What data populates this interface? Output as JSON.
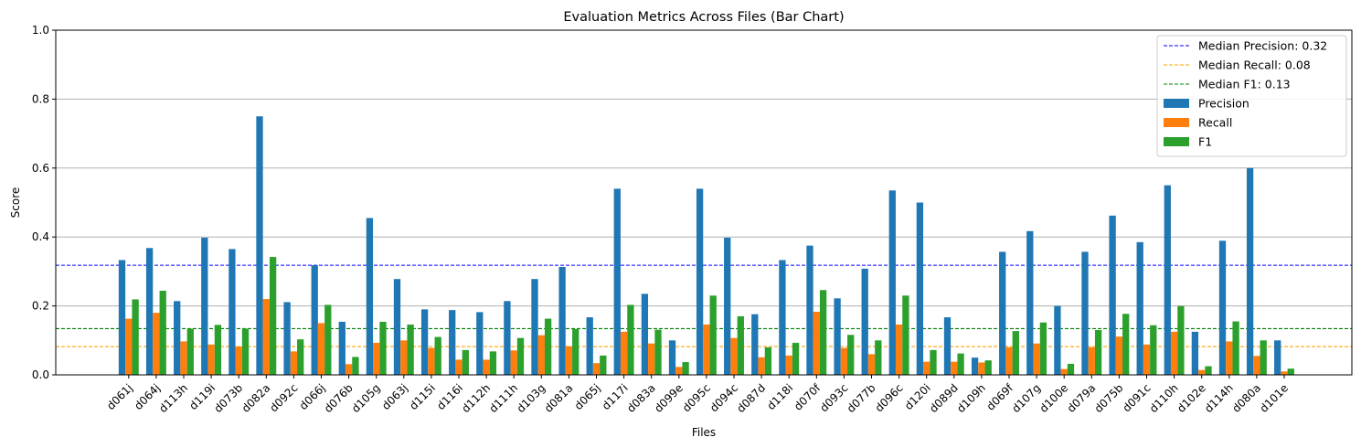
{
  "chart_data": {
    "type": "bar",
    "title": "Evaluation Metrics Across Files (Bar Chart)",
    "xlabel": "Files",
    "ylabel": "Score",
    "ylim": [
      0,
      1.0
    ],
    "yticks": [
      "0.0",
      "0.2",
      "0.4",
      "0.6",
      "0.8",
      "1.0"
    ],
    "grid": "horizontal",
    "legend_position": "top-right",
    "categories": [
      "d061j",
      "d064j",
      "d113h",
      "d119i",
      "d073b",
      "d082a",
      "d092c",
      "d066j",
      "d076b",
      "d105g",
      "d063j",
      "d115i",
      "d116i",
      "d112h",
      "d111h",
      "d103g",
      "d081a",
      "d065j",
      "d117i",
      "d083a",
      "d099e",
      "d095c",
      "d094c",
      "d087d",
      "d118i",
      "d070f",
      "d093c",
      "d077b",
      "d096c",
      "d120i",
      "d089d",
      "d109h",
      "d069f",
      "d107g",
      "d100e",
      "d079a",
      "d075b",
      "d091c",
      "d110h",
      "d102e",
      "d114h",
      "d080a",
      "d101e"
    ],
    "series": [
      {
        "name": "Precision",
        "color": "#1f77b4",
        "values": [
          0.333,
          0.368,
          0.214,
          0.398,
          0.365,
          0.75,
          0.211,
          0.318,
          0.154,
          0.455,
          0.278,
          0.19,
          0.188,
          0.182,
          0.214,
          0.278,
          0.313,
          0.167,
          0.54,
          0.235,
          0.1,
          0.54,
          0.398,
          0.176,
          0.333,
          0.375,
          0.222,
          0.308,
          0.535,
          0.5,
          0.167,
          0.05,
          0.357,
          0.417,
          0.2,
          0.357,
          0.462,
          0.385,
          0.55,
          0.125,
          0.389,
          0.6,
          0.1
        ]
      },
      {
        "name": "Recall",
        "color": "#ff7f0e",
        "values": [
          0.163,
          0.18,
          0.097,
          0.088,
          0.082,
          0.22,
          0.068,
          0.15,
          0.031,
          0.093,
          0.1,
          0.078,
          0.044,
          0.044,
          0.071,
          0.115,
          0.083,
          0.034,
          0.125,
          0.091,
          0.023,
          0.146,
          0.107,
          0.051,
          0.056,
          0.183,
          0.078,
          0.06,
          0.146,
          0.038,
          0.038,
          0.036,
          0.08,
          0.091,
          0.017,
          0.08,
          0.111,
          0.088,
          0.125,
          0.014,
          0.097,
          0.055,
          0.01
        ]
      },
      {
        "name": "F1",
        "color": "#2ca02c",
        "values": [
          0.219,
          0.244,
          0.134,
          0.145,
          0.134,
          0.342,
          0.103,
          0.203,
          0.052,
          0.154,
          0.146,
          0.11,
          0.072,
          0.068,
          0.107,
          0.163,
          0.133,
          0.056,
          0.203,
          0.131,
          0.037,
          0.23,
          0.17,
          0.08,
          0.093,
          0.246,
          0.116,
          0.1,
          0.23,
          0.072,
          0.062,
          0.042,
          0.127,
          0.152,
          0.032,
          0.13,
          0.177,
          0.144,
          0.2,
          0.025,
          0.155,
          0.1,
          0.018
        ]
      }
    ],
    "reference_lines": [
      {
        "label": "Median Precision: 0.32",
        "value": 0.318,
        "color": "#0000ff"
      },
      {
        "label": "Median Recall: 0.08",
        "value": 0.082,
        "color": "#ffa500"
      },
      {
        "label": "Median F1: 0.13",
        "value": 0.134,
        "color": "#008000"
      }
    ]
  }
}
